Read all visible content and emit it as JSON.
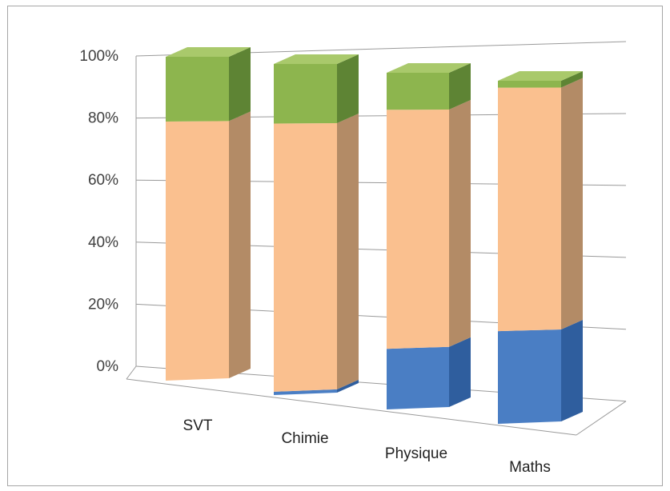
{
  "chart_data": {
    "type": "bar",
    "stacked": true,
    "percent_stacked": true,
    "three_d": true,
    "categories": [
      "SVT",
      "Chimie",
      "Physique",
      "Maths"
    ],
    "series": [
      {
        "values": [
          0,
          1,
          18,
          27
        ]
      },
      {
        "values": [
          80,
          81,
          71,
          71
        ]
      },
      {
        "values": [
          20,
          18,
          11,
          2
        ]
      }
    ],
    "y_ticks": [
      "0%",
      "20%",
      "40%",
      "60%",
      "80%",
      "100%"
    ],
    "ylim": [
      0,
      100
    ],
    "grid": true,
    "legend": "none",
    "title": "",
    "xlabel": "",
    "ylabel": ""
  },
  "colors": {
    "series": [
      {
        "front": "#4a7ec4",
        "side": "#2f5e9e",
        "top": "#6e9ad6"
      },
      {
        "front": "#fac08f",
        "side": "#b38b66",
        "top": "#fcd3b0"
      },
      {
        "front": "#8db54e",
        "side": "#5e8434",
        "top": "#a9c96b"
      }
    ],
    "grid": "#9a9a9a",
    "frame": "#a6a6a6",
    "text": "#3f3f3f"
  }
}
